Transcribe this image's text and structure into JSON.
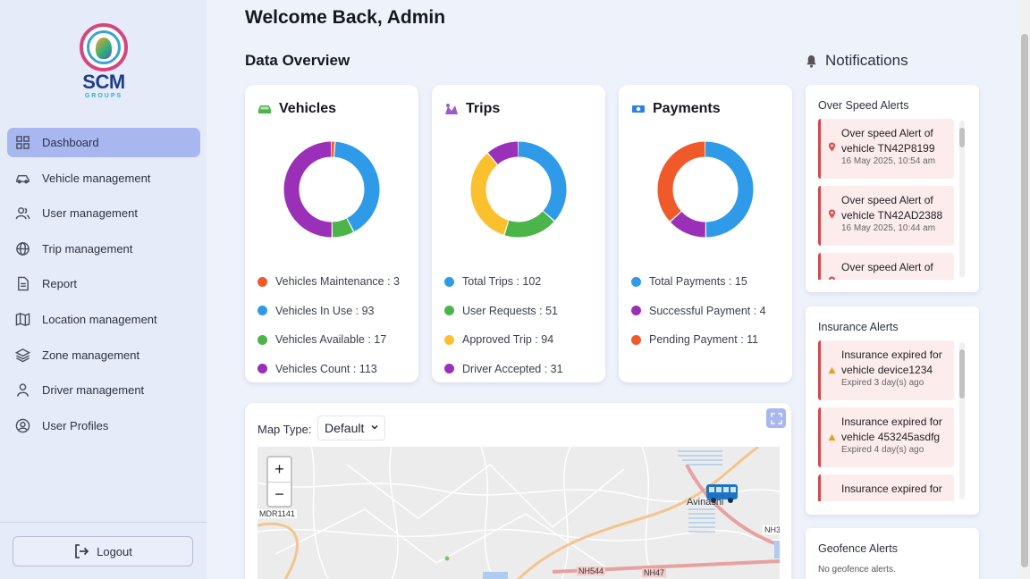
{
  "brand": {
    "name": "SCM",
    "sub": "GROUPS"
  },
  "sidebar": {
    "items": [
      {
        "label": "Dashboard",
        "icon": "dashboard-icon",
        "active": true
      },
      {
        "label": "Vehicle management",
        "icon": "car-icon"
      },
      {
        "label": "User management",
        "icon": "users-icon"
      },
      {
        "label": "Trip management",
        "icon": "globe-icon"
      },
      {
        "label": "Report",
        "icon": "document-icon"
      },
      {
        "label": "Location management",
        "icon": "map-icon"
      },
      {
        "label": "Zone management",
        "icon": "layers-icon"
      },
      {
        "label": "Driver management",
        "icon": "person-icon"
      },
      {
        "label": "User Profiles",
        "icon": "user-circle-icon"
      }
    ],
    "logout": "Logout"
  },
  "header": {
    "welcome": "Welcome Back, Admin",
    "overview": "Data Overview"
  },
  "colors": {
    "orange": "#f05a2a",
    "blue": "#2f9be8",
    "green": "#4bb54a",
    "purple": "#9b30b8",
    "yellow": "#fbc02d",
    "accent": "#a9b7f0"
  },
  "cards": {
    "vehicles": {
      "title": "Vehicles",
      "legend": [
        {
          "label": "Vehicles Maintenance : 3",
          "color": "#f05a2a",
          "value": 3
        },
        {
          "label": "Vehicles In Use : 93",
          "color": "#2f9be8",
          "value": 93
        },
        {
          "label": "Vehicles Available : 17",
          "color": "#4bb54a",
          "value": 17
        },
        {
          "label": "Vehicles Count : 113",
          "color": "#9b30b8",
          "value": 113
        }
      ]
    },
    "trips": {
      "title": "Trips",
      "legend": [
        {
          "label": "Total Trips : 102",
          "color": "#2f9be8",
          "value": 102
        },
        {
          "label": "User Requests : 51",
          "color": "#4bb54a",
          "value": 51
        },
        {
          "label": "Approved Trip : 94",
          "color": "#fbc02d",
          "value": 94
        },
        {
          "label": "Driver Accepted : 31",
          "color": "#9b30b8",
          "value": 31
        }
      ]
    },
    "payments": {
      "title": "Payments",
      "legend": [
        {
          "label": "Total Payments : 15",
          "color": "#2f9be8",
          "value": 15
        },
        {
          "label": "Successful Payment : 4",
          "color": "#9b30b8",
          "value": 4
        },
        {
          "label": "Pending Payment : 11",
          "color": "#f05a2a",
          "value": 11
        }
      ]
    }
  },
  "map": {
    "type_label": "Map Type:",
    "type_value": "Default",
    "zoom_in": "+",
    "zoom_out": "−",
    "labels": {
      "road1": "MDR1141",
      "road2": "NH544",
      "road3": "NH47",
      "road4": "NH3",
      "town": "Avinashi"
    }
  },
  "notifications": {
    "title": "Notifications",
    "overspeed": {
      "title": "Over Speed Alerts",
      "items": [
        {
          "text": "Over speed Alert of vehicle TN42P8199",
          "time": "16 May 2025, 10:54 am"
        },
        {
          "text": "Over speed Alert of vehicle TN42AD2388",
          "time": "16 May 2025, 10:44 am"
        },
        {
          "text": "Over speed Alert of",
          "time": ""
        }
      ]
    },
    "insurance": {
      "title": "Insurance Alerts",
      "items": [
        {
          "text": "Insurance expired for vehicle device1234",
          "time": "Expired 3 day(s) ago"
        },
        {
          "text": "Insurance expired for vehicle 453245asdfg",
          "time": "Expired 4 day(s) ago"
        },
        {
          "text": "Insurance expired for",
          "time": ""
        }
      ]
    },
    "geofence": {
      "title": "Geofence Alerts",
      "empty": "No geofence alerts."
    }
  }
}
